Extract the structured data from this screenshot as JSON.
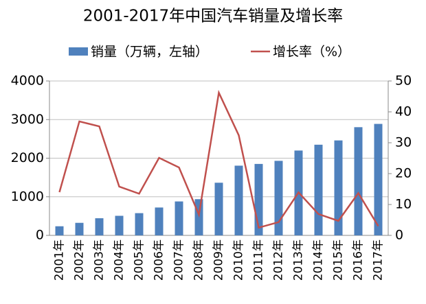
{
  "chart_data": {
    "type": "bar",
    "title": "2001-2017年中国汽车销量及增长率",
    "categories": [
      "2001年",
      "2002年",
      "2003年",
      "2004年",
      "2005年",
      "2006年",
      "2007年",
      "2008年",
      "2009年",
      "2010年",
      "2011年",
      "2012年",
      "2013年",
      "2014年",
      "2015年",
      "2016年",
      "2017年"
    ],
    "series": [
      {
        "name": "销量（万辆，左轴）",
        "type": "bar",
        "color": "#4f81bd",
        "values": [
          236,
          325,
          444,
          507,
          576,
          722,
          879,
          938,
          1364,
          1806,
          1851,
          1931,
          2198,
          2349,
          2460,
          2803,
          2888
        ]
      },
      {
        "name": "增长率（%）",
        "type": "line",
        "axis": "y2",
        "color": "#c0504d",
        "values": [
          14,
          36.9,
          35.3,
          15.8,
          13.5,
          25.1,
          22,
          6.7,
          46.2,
          32.4,
          2.5,
          4.3,
          13.9,
          6.9,
          4.7,
          13.7,
          3
        ]
      }
    ],
    "ylim": [
      0,
      4000
    ],
    "yticks": [
      0,
      1000,
      2000,
      3000,
      4000
    ],
    "y2lim": [
      0,
      50
    ],
    "y2ticks": [
      0,
      10,
      20,
      30,
      40,
      50
    ],
    "grid": true,
    "legend": "top"
  }
}
